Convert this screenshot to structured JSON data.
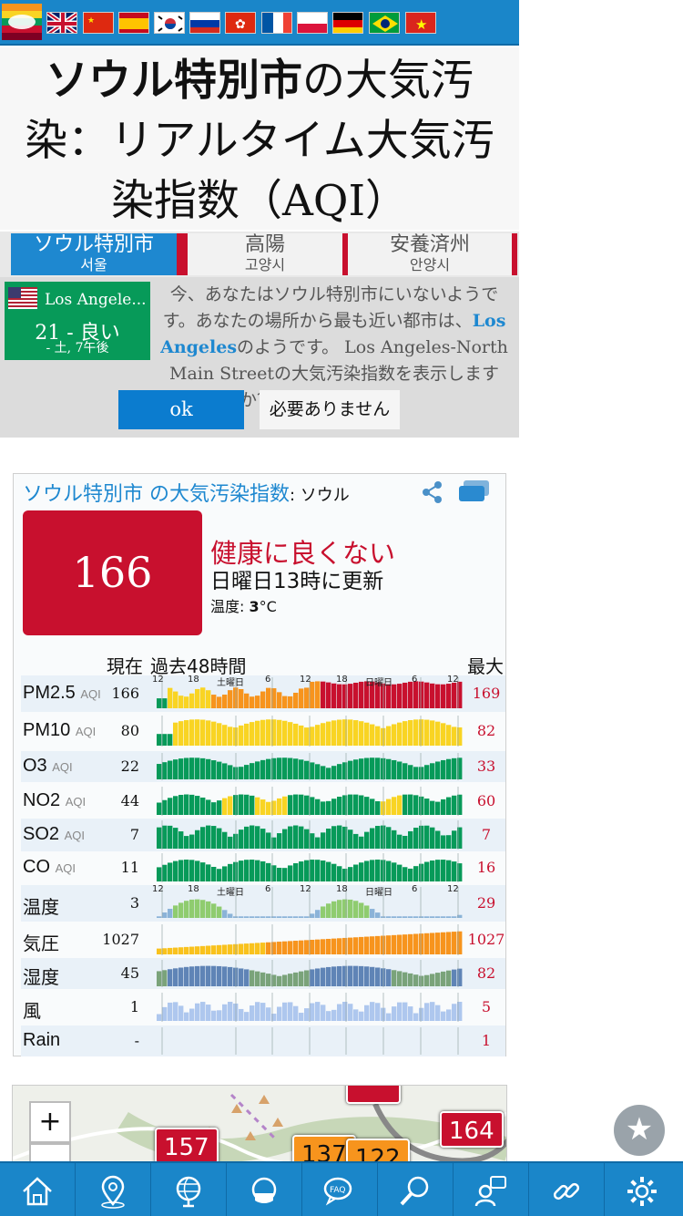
{
  "flags": [
    "app",
    "uk",
    "china",
    "spain",
    "korea",
    "russia",
    "hongkong",
    "france",
    "poland",
    "germany",
    "brazil",
    "vietnam"
  ],
  "title": {
    "bold": "ソウル特別市",
    "rest": "の大気汚染：リアルタイム大気汚染指数（AQI）"
  },
  "tabs": [
    {
      "name": "ソウル特別市",
      "sub": "서울"
    },
    {
      "name": "高陽",
      "sub": "고양시"
    },
    {
      "name": "安養済州",
      "sub": "안양시"
    }
  ],
  "notice": {
    "loc_name": "Los Angele...",
    "loc_aqi": "21 - 良い",
    "loc_time": "- 土, 7午後",
    "text_1": "今、あなたはソウル特別市にいないようです。あなたの場所から最も近い都市は、",
    "link": "Los Angeles",
    "text_2": "のようです。 Los Angeles-North Main Streetの大気汚染指数を表示しますか？",
    "ok": "ok",
    "no": "必要ありません"
  },
  "card": {
    "city": "ソウル特別市",
    "title_mid": " の大気汚染指数",
    "station": ": ソウル",
    "aqi": "166",
    "level": "健康に良くない",
    "updated": "日曜日13時に更新",
    "temp_label": "温度: ",
    "temp_value": "3",
    "temp_unit": "°C",
    "col_now": "現在",
    "col_past": "過去48時間",
    "col_max": "最大"
  },
  "time_labels": [
    "12",
    "18",
    "土曜日",
    "6",
    "12",
    "18",
    "日曜日",
    "6",
    "12"
  ],
  "rows": [
    {
      "name": "PM2.5",
      "unit": "AQI",
      "cur": "166",
      "max": "169",
      "kind": "pm25"
    },
    {
      "name": "PM10",
      "unit": "AQI",
      "cur": "80",
      "max": "82",
      "kind": "pm10"
    },
    {
      "name": "O3",
      "unit": "AQI",
      "cur": "22",
      "max": "33",
      "kind": "o3"
    },
    {
      "name": "NO2",
      "unit": "AQI",
      "cur": "44",
      "max": "60",
      "kind": "no2"
    },
    {
      "name": "SO2",
      "unit": "AQI",
      "cur": "7",
      "max": "7",
      "kind": "so2"
    },
    {
      "name": "CO",
      "unit": "AQI",
      "cur": "11",
      "max": "16",
      "kind": "co"
    },
    {
      "name": "温度",
      "unit": "",
      "cur": "3",
      "max": "29",
      "kind": "temp"
    },
    {
      "name": "気圧",
      "unit": "",
      "cur": "1027",
      "max": "1027",
      "kind": "press"
    },
    {
      "name": "湿度",
      "unit": "",
      "cur": "45",
      "max": "82",
      "kind": "hum"
    },
    {
      "name": "風",
      "unit": "",
      "cur": "1",
      "max": "5",
      "kind": "wind"
    },
    {
      "name": "Rain",
      "unit": "",
      "cur": "-",
      "max": "1",
      "kind": "rain"
    }
  ],
  "map": {
    "zoom_in": "+",
    "zoom_out": "−",
    "markers": [
      {
        "value": "157",
        "color": "#c8102e"
      },
      {
        "value": "137",
        "color": "#f7941d"
      },
      {
        "value": "122",
        "color": "#f7941d"
      },
      {
        "value": "164",
        "color": "#c8102e"
      }
    ]
  },
  "colors": {
    "blue": "#1a86c9",
    "unhealthy": "#c8102e",
    "good": "#079a59",
    "moderate": "#f9d423",
    "usg": "#f7941d"
  },
  "nav": [
    "home-icon",
    "location-pin-icon",
    "globe-icon",
    "mask-icon",
    "faq-icon",
    "search-icon",
    "expert-icon",
    "link-icon",
    "settings-icon"
  ]
}
